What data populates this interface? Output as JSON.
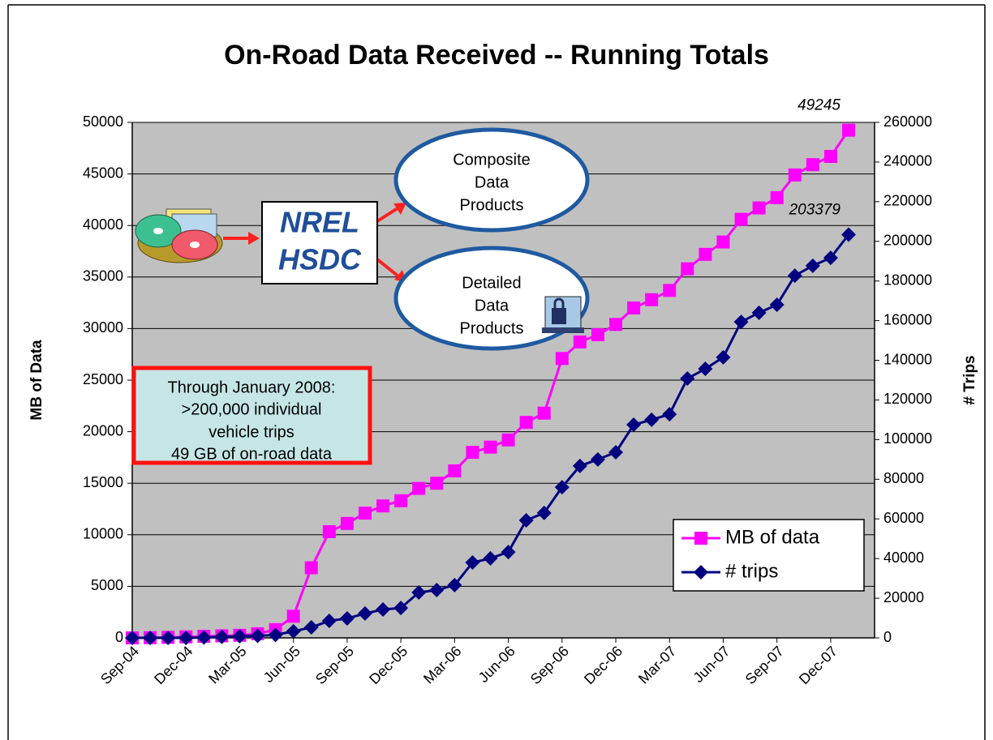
{
  "chart_data": {
    "type": "line",
    "title": "On-Road Data Received -- Running Totals",
    "y_label": "MB of Data",
    "y2_label": "# Trips",
    "categories": [
      "Sep-04",
      null,
      null,
      "Dec-04",
      null,
      null,
      "Mar-05",
      null,
      null,
      "Jun-05",
      null,
      null,
      "Sep-05",
      null,
      null,
      "Dec-05",
      null,
      null,
      "Mar-06",
      null,
      null,
      "Jun-06",
      null,
      null,
      "Sep-06",
      null,
      null,
      "Dec-06",
      null,
      null,
      "Mar-07",
      null,
      null,
      "Jun-07",
      null,
      null,
      "Sep-07",
      null,
      null,
      "Dec-07",
      null
    ],
    "series": [
      {
        "name": "MB of data",
        "color": "#ff00ff",
        "marker": "square",
        "axis": "y",
        "values": [
          0,
          20,
          50,
          100,
          150,
          200,
          250,
          400,
          800,
          2100,
          6800,
          10300,
          11100,
          12100,
          12800,
          13300,
          14500,
          15000,
          16200,
          18000,
          18500,
          19200,
          20900,
          21800,
          27100,
          28700,
          29400,
          30400,
          32000,
          32800,
          33700,
          35800,
          37200,
          38400,
          40600,
          41700,
          42700,
          44900,
          45900,
          46700,
          49245
        ]
      },
      {
        "name": "# trips",
        "color": "#000080",
        "marker": "diamond",
        "axis": "y2",
        "values": [
          0,
          0,
          0,
          0,
          200,
          500,
          800,
          1000,
          1500,
          3300,
          5300,
          8600,
          9800,
          12300,
          14300,
          15100,
          22900,
          24100,
          26600,
          38000,
          40100,
          43300,
          59300,
          63000,
          76000,
          86700,
          90000,
          93600,
          107500,
          110000,
          112800,
          130800,
          135700,
          141500,
          159400,
          164000,
          168000,
          182700,
          187700,
          191700,
          203379
        ]
      }
    ],
    "ylim": [
      0,
      50000
    ],
    "yticks": [
      0,
      5000,
      10000,
      15000,
      20000,
      25000,
      30000,
      35000,
      40000,
      45000,
      50000
    ],
    "y2lim": [
      0,
      260000
    ],
    "y2ticks": [
      0,
      20000,
      40000,
      60000,
      80000,
      100000,
      120000,
      140000,
      160000,
      180000,
      200000,
      220000,
      240000,
      260000
    ],
    "grid": true,
    "legend": "lower right",
    "annotations": {
      "hub": [
        "NREL",
        "HSDC"
      ],
      "composite": [
        "Composite",
        "Data",
        "Products"
      ],
      "detailed": [
        "Detailed",
        "Data",
        "Products"
      ],
      "note": [
        "Through January 2008:",
        ">200,000 individual",
        "vehicle trips",
        "49 GB of on-road data"
      ]
    }
  }
}
